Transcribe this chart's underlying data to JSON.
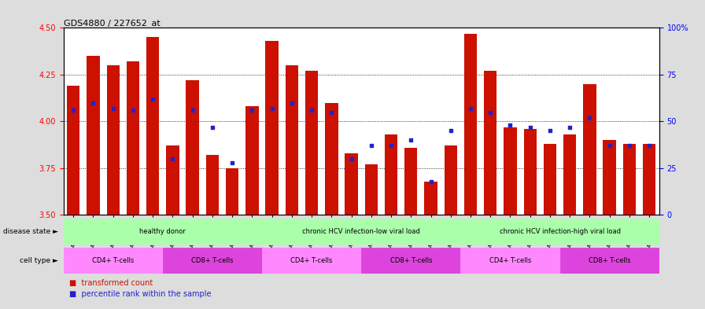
{
  "title": "GDS4880 / 227652_at",
  "samples": [
    "GSM1210739",
    "GSM1210740",
    "GSM1210741",
    "GSM1210742",
    "GSM1210743",
    "GSM1210754",
    "GSM1210755",
    "GSM1210756",
    "GSM1210757",
    "GSM1210758",
    "GSM1210745",
    "GSM1210750",
    "GSM1210751",
    "GSM1210752",
    "GSM1210753",
    "GSM1210760",
    "GSM1210765",
    "GSM1210766",
    "GSM1210767",
    "GSM1210768",
    "GSM1210744",
    "GSM1210746",
    "GSM1210747",
    "GSM1210748",
    "GSM1210749",
    "GSM1210759",
    "GSM1210761",
    "GSM1210762",
    "GSM1210763",
    "GSM1210764"
  ],
  "transformed_count": [
    4.19,
    4.35,
    4.3,
    4.32,
    4.45,
    3.87,
    4.22,
    3.82,
    3.75,
    4.08,
    4.43,
    4.3,
    4.27,
    4.1,
    3.83,
    3.77,
    3.93,
    3.86,
    3.68,
    3.87,
    4.47,
    4.27,
    3.97,
    3.96,
    3.88,
    3.93,
    4.2,
    3.9,
    3.88,
    3.88
  ],
  "percentile_rank": [
    56,
    60,
    57,
    56,
    62,
    30,
    56,
    47,
    28,
    56,
    57,
    60,
    56,
    55,
    30,
    37,
    37,
    40,
    18,
    45,
    57,
    55,
    48,
    47,
    45,
    47,
    52,
    37,
    37,
    37
  ],
  "ylim_left": [
    3.5,
    4.5
  ],
  "ylim_right": [
    0,
    100
  ],
  "yticks_left": [
    3.5,
    3.75,
    4.0,
    4.25,
    4.5
  ],
  "yticks_right": [
    0,
    25,
    50,
    75,
    100
  ],
  "bar_color": "#CC1100",
  "dot_color": "#2222CC",
  "base_value": 3.5,
  "disease_groups": [
    {
      "label": "healthy donor",
      "start": 0,
      "end": 10,
      "color": "#AAFFAA"
    },
    {
      "label": "chronic HCV infection-low viral load",
      "start": 10,
      "end": 20,
      "color": "#AAFFAA"
    },
    {
      "label": "chronic HCV infection-high viral load",
      "start": 20,
      "end": 30,
      "color": "#AAFFAA"
    }
  ],
  "cell_type_groups": [
    {
      "label": "CD4+ T-cells",
      "start": 0,
      "end": 5,
      "color": "#FF88FF"
    },
    {
      "label": "CD8+ T-cells",
      "start": 5,
      "end": 10,
      "color": "#DD44DD"
    },
    {
      "label": "CD4+ T-cells",
      "start": 10,
      "end": 15,
      "color": "#FF88FF"
    },
    {
      "label": "CD8+ T-cells",
      "start": 15,
      "end": 20,
      "color": "#DD44DD"
    },
    {
      "label": "CD4+ T-cells",
      "start": 20,
      "end": 25,
      "color": "#FF88FF"
    },
    {
      "label": "CD8+ T-cells",
      "start": 25,
      "end": 30,
      "color": "#DD44DD"
    }
  ],
  "disease_state_label": "disease state",
  "cell_type_label": "cell type",
  "bg_color": "#DDDDDD",
  "plot_bg_color": "#FFFFFF",
  "grid_dotted_values": [
    3.75,
    4.0,
    4.25
  ],
  "n_samples": 30
}
